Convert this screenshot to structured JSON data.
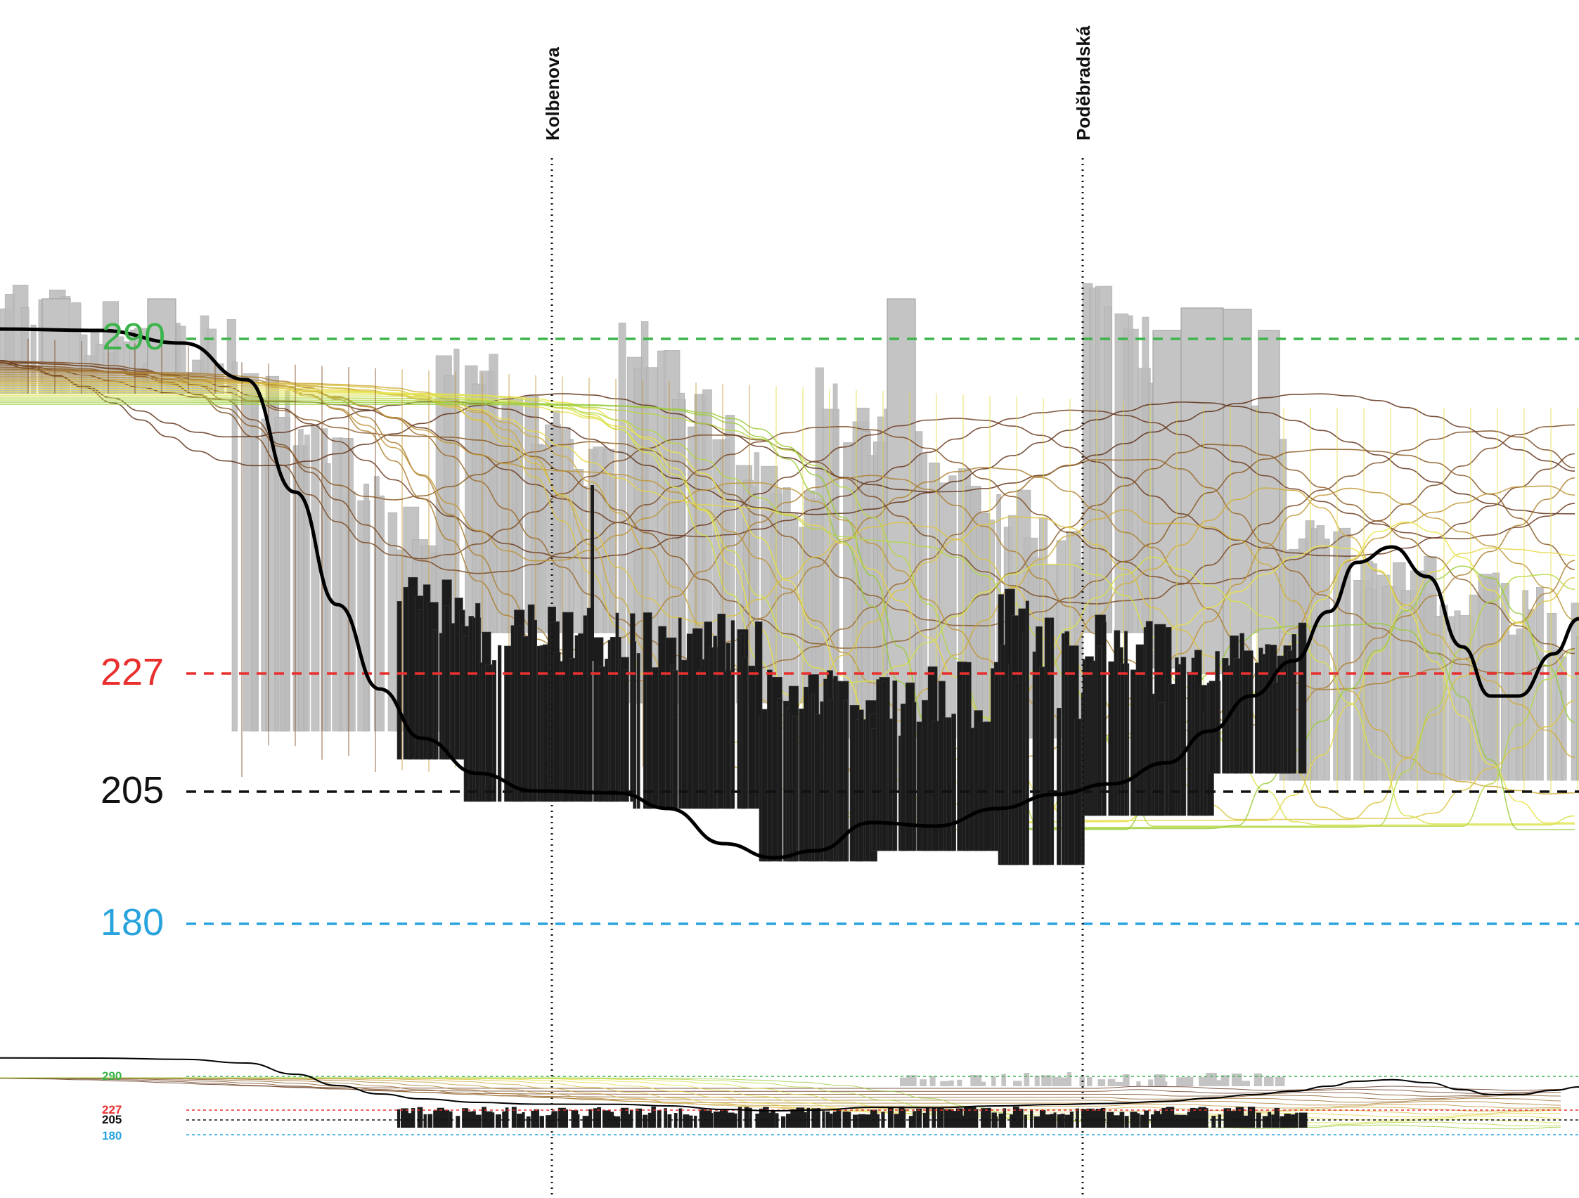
{
  "streets": [
    {
      "id": "kolbenova",
      "name": "Kolbenova"
    },
    {
      "id": "podebradska",
      "name": "Poděbradská"
    }
  ],
  "levels": [
    {
      "id": "290",
      "value": "290",
      "color": "#3cb44b"
    },
    {
      "id": "227",
      "value": "227",
      "color": "#e8312f"
    },
    {
      "id": "205",
      "value": "205",
      "color": "#111111"
    },
    {
      "id": "180",
      "value": "180",
      "color": "#29a3dd"
    }
  ],
  "colors": {
    "buildings": "#b9b9b9",
    "buildings_dark": "#1c1c1c",
    "terrain_high": "#6b3a1f",
    "terrain_mid": "#c9a53a",
    "terrain_low": "#e9e34a",
    "terrain_green": "#9bcc3c",
    "profile": "#000000"
  }
}
